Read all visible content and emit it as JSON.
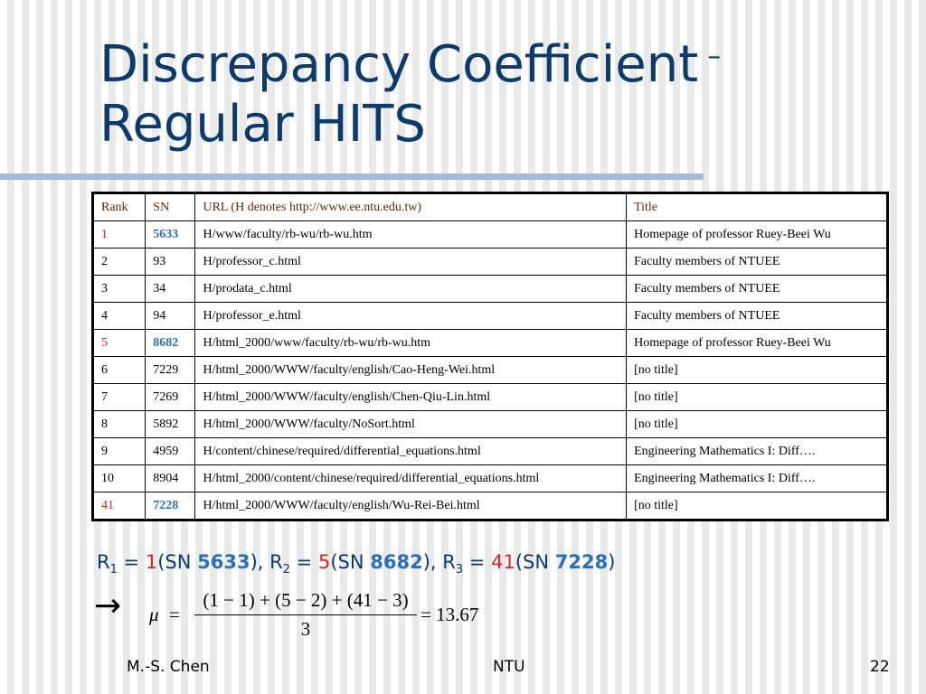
{
  "slide": {
    "title_main": "Discrepancy Coefficient",
    "title_dash": "–",
    "title_line2": "Regular HITS"
  },
  "table": {
    "headers": [
      "Rank",
      "SN",
      "URL (H denotes http://www.ee.ntu.edu.tw)",
      "Title"
    ],
    "rows": [
      {
        "rank": "1",
        "sn": "5633",
        "url": "H/www/faculty/rb-wu/rb-wu.htm",
        "title": "Homepage of professor Ruey-Beei Wu"
      },
      {
        "rank": "2",
        "sn": "93",
        "url": "H/professor_c.html",
        "title": "Faculty members of NTUEE"
      },
      {
        "rank": "3",
        "sn": "34",
        "url": "H/prodata_c.html",
        "title": "Faculty members of NTUEE"
      },
      {
        "rank": "4",
        "sn": "94",
        "url": "H/professor_e.html",
        "title": "Faculty members of NTUEE"
      },
      {
        "rank": "5",
        "sn": "8682",
        "url": "H/html_2000/www/faculty/rb-wu/rb-wu.htm",
        "title": "Homepage of professor Ruey-Beei Wu"
      },
      {
        "rank": "6",
        "sn": "7229",
        "url": "H/html_2000/WWW/faculty/english/Cao-Heng-Wei.html",
        "title": "[no title]"
      },
      {
        "rank": "7",
        "sn": "7269",
        "url": "H/html_2000/WWW/faculty/english/Chen-Qiu-Lin.html",
        "title": "[no title]"
      },
      {
        "rank": "8",
        "sn": "5892",
        "url": "H/html_2000/WWW/faculty/NoSort.html",
        "title": "[no title]"
      },
      {
        "rank": "9",
        "sn": "4959",
        "url": "H/content/chinese/required/differential_equations.html",
        "title": "Engineering Mathematics I: Diff…."
      },
      {
        "rank": "10",
        "sn": "8904",
        "url": "H/html_2000/content/chinese/required/differential_equations.html",
        "title": "Engineering Mathematics I: Diff…."
      },
      {
        "rank": "41",
        "sn": "7228",
        "url": "H/html_2000/WWW/faculty/english/Wu-Rei-Bei.html",
        "title": "[no title]"
      }
    ]
  },
  "summary": {
    "r1_label": "R",
    "r1_sub": "1",
    "r1_value": "1",
    "r1_sn": "5633",
    "r2_label": "R",
    "r2_sub": "2",
    "r2_value": "5",
    "r2_sn": "8682",
    "r3_label": "R",
    "r3_sub": "3",
    "r3_value": "41",
    "r3_sn": "7228",
    "eq": " = ",
    "sn_prefix": "(SN ",
    "sep": "), ",
    "close": ")"
  },
  "formula": {
    "arrow": "→",
    "mu": "μ",
    "equals": "=",
    "numerator": "(1 − 1) + (5 − 2) + (41 − 3)",
    "denominator": "3",
    "result": "= 13.67"
  },
  "footer": {
    "author": "M.-S. Chen",
    "org": "NTU",
    "page": "22"
  },
  "colors": {
    "title": "#0b3a6b",
    "highlight_rank": "#e02020",
    "highlight_sn": "#2a6fb8",
    "rule": "#a5b9d6"
  }
}
